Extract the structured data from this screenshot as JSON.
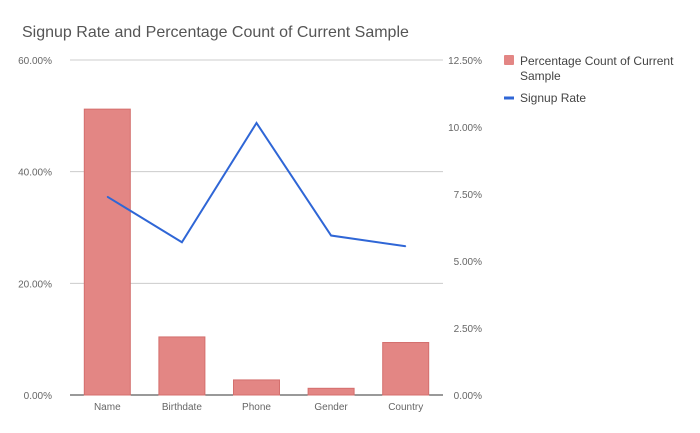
{
  "chart_data": {
    "type": "bar+line",
    "title": "Signup Rate and Percentage Count of Current Sample",
    "categories": [
      "Name",
      "Birthdate",
      "Phone",
      "Gender",
      "Country"
    ],
    "series": [
      {
        "name": "Percentage Count of Current Sample",
        "type": "bar",
        "axis": "left",
        "color": "#e38684",
        "values": [
          51.2,
          10.4,
          2.7,
          1.2,
          9.4
        ]
      },
      {
        "name": "Signup Rate",
        "type": "line",
        "axis": "right",
        "color": "#2f66d6",
        "values": [
          7.4,
          5.7,
          10.15,
          5.95,
          5.55
        ]
      }
    ],
    "y_left": {
      "ylim": [
        0,
        60
      ],
      "ticks": [
        "0.00%",
        "20.00%",
        "40.00%",
        "60.00%"
      ],
      "tick_values": [
        0,
        20,
        40,
        60
      ]
    },
    "y_right": {
      "ylim": [
        0,
        12.5
      ],
      "ticks": [
        "0.00%",
        "2.50%",
        "5.00%",
        "7.50%",
        "10.00%",
        "12.50%"
      ],
      "tick_values": [
        0,
        2.5,
        5,
        7.5,
        10,
        12.5
      ]
    },
    "legend": {
      "placement": "right",
      "items": [
        {
          "label_line1": "Percentage Count of Current",
          "label_line2": "Sample",
          "marker": "square",
          "color": "#e38684"
        },
        {
          "label_line1": "Signup Rate",
          "label_line2": "",
          "marker": "line",
          "color": "#2f66d6"
        }
      ]
    },
    "grid": true
  }
}
